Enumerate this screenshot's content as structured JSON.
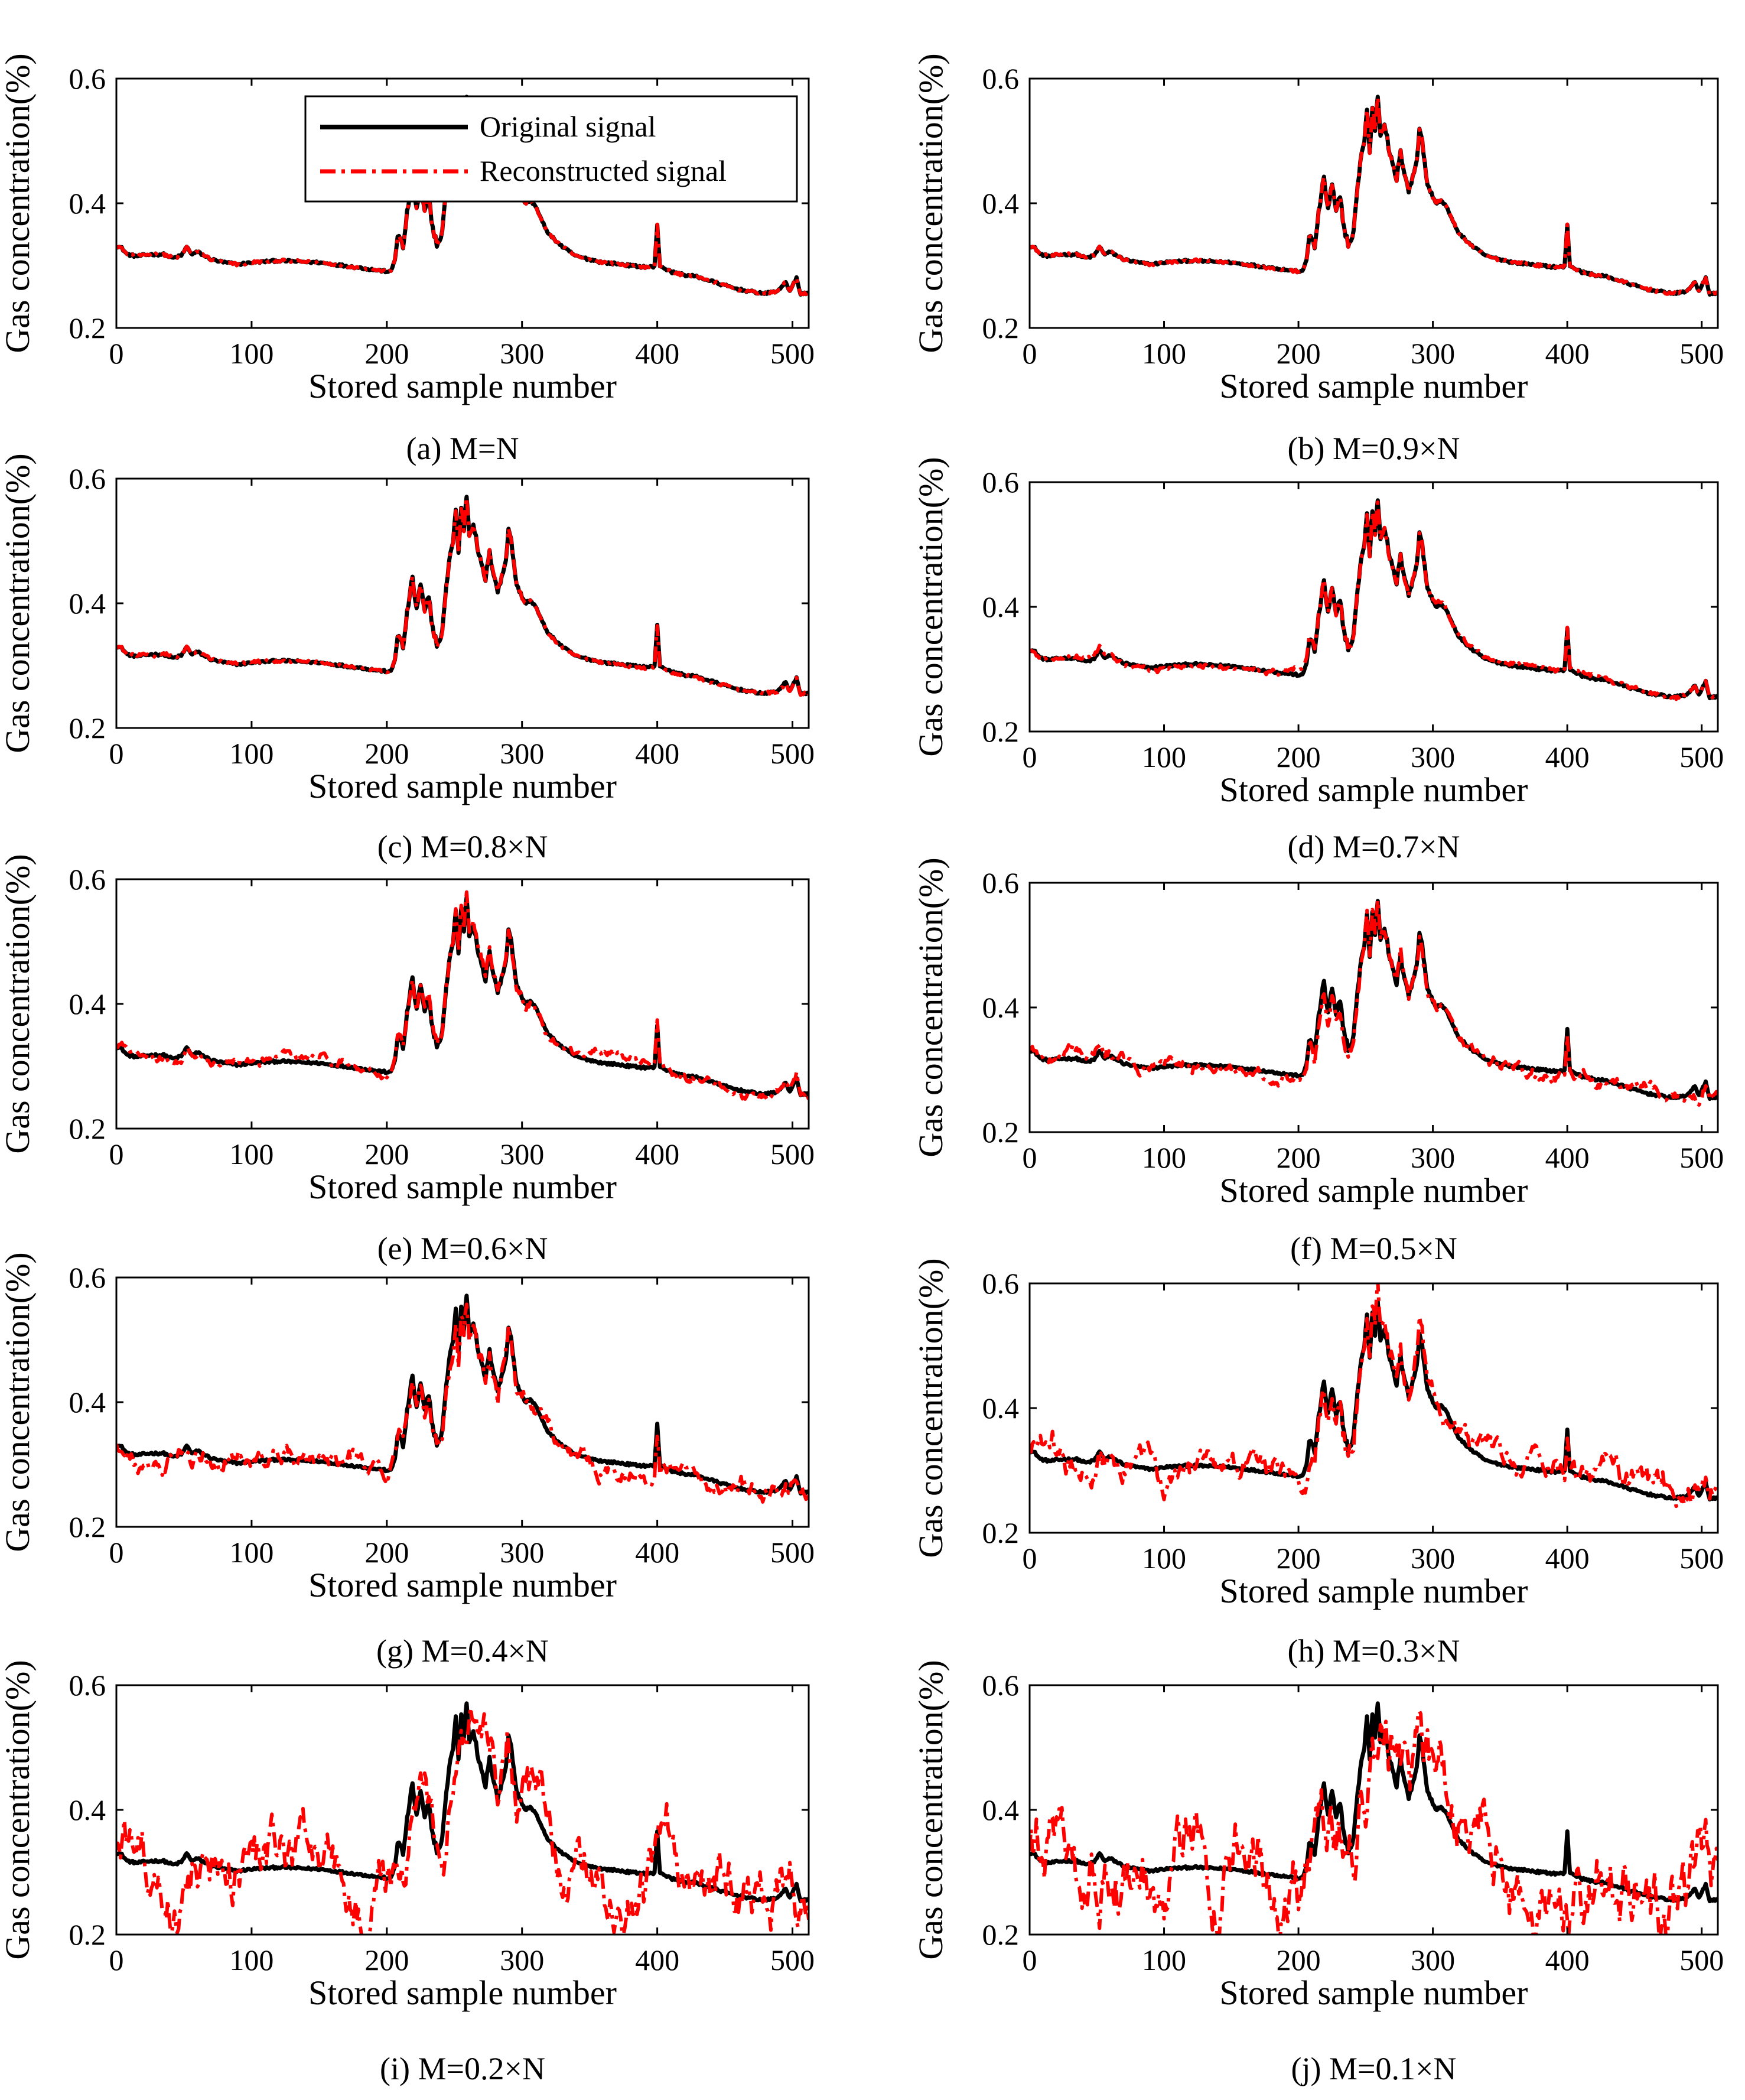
{
  "figure": {
    "legend": {
      "original": "Original signal",
      "reconstructed": "Reconstructed signal"
    },
    "colors": {
      "original": "#000000",
      "reconstructed": "#ff0000"
    }
  },
  "chart_data": [
    {
      "type": "line",
      "caption": "(a) M=N",
      "ratio": 1.0,
      "xlabel": "Stored sample number",
      "ylabel": "Gas concentration(%)",
      "xlim": [
        0,
        512
      ],
      "ylim": [
        0.2,
        0.6
      ],
      "xticks": [
        "0",
        "100",
        "200",
        "300",
        "400",
        "500"
      ],
      "yticks": [
        "0.2",
        "0.4",
        "0.6"
      ],
      "series": [
        {
          "name": "Original signal",
          "style": "solid"
        },
        {
          "name": "Reconstructed signal",
          "style": "dashdot"
        }
      ]
    },
    {
      "type": "line",
      "caption": "(b) M=0.9×N",
      "ratio": 0.9,
      "xlabel": "Stored sample number",
      "ylabel": "Gas concentration(%)",
      "xlim": [
        0,
        512
      ],
      "ylim": [
        0.2,
        0.6
      ],
      "xticks": [
        "0",
        "100",
        "200",
        "300",
        "400",
        "500"
      ],
      "yticks": [
        "0.2",
        "0.4",
        "0.6"
      ],
      "series": [
        {
          "name": "Original signal",
          "style": "solid"
        },
        {
          "name": "Reconstructed signal",
          "style": "dashdot"
        }
      ]
    },
    {
      "type": "line",
      "caption": "(c) M=0.8×N",
      "ratio": 0.8,
      "xlabel": "Stored sample number",
      "ylabel": "Gas concentration(%)",
      "xlim": [
        0,
        512
      ],
      "ylim": [
        0.2,
        0.6
      ],
      "xticks": [
        "0",
        "100",
        "200",
        "300",
        "400",
        "500"
      ],
      "yticks": [
        "0.2",
        "0.4",
        "0.6"
      ],
      "series": [
        {
          "name": "Original signal",
          "style": "solid"
        },
        {
          "name": "Reconstructed signal",
          "style": "dashdot"
        }
      ]
    },
    {
      "type": "line",
      "caption": "(d) M=0.7×N",
      "ratio": 0.7,
      "xlabel": "Stored sample number",
      "ylabel": "Gas concentration(%)",
      "xlim": [
        0,
        512
      ],
      "ylim": [
        0.2,
        0.6
      ],
      "xticks": [
        "0",
        "100",
        "200",
        "300",
        "400",
        "500"
      ],
      "yticks": [
        "0.2",
        "0.4",
        "0.6"
      ],
      "series": [
        {
          "name": "Original signal",
          "style": "solid"
        },
        {
          "name": "Reconstructed signal",
          "style": "dashdot"
        }
      ]
    },
    {
      "type": "line",
      "caption": "(e) M=0.6×N",
      "ratio": 0.6,
      "xlabel": "Stored sample number",
      "ylabel": "Gas concentration(%)",
      "xlim": [
        0,
        512
      ],
      "ylim": [
        0.2,
        0.6
      ],
      "xticks": [
        "0",
        "100",
        "200",
        "300",
        "400",
        "500"
      ],
      "yticks": [
        "0.2",
        "0.4",
        "0.6"
      ],
      "series": [
        {
          "name": "Original signal",
          "style": "solid"
        },
        {
          "name": "Reconstructed signal",
          "style": "dashdot"
        }
      ]
    },
    {
      "type": "line",
      "caption": "(f) M=0.5×N",
      "ratio": 0.5,
      "xlabel": "Stored sample number",
      "ylabel": "Gas concentration(%)",
      "xlim": [
        0,
        512
      ],
      "ylim": [
        0.2,
        0.6
      ],
      "xticks": [
        "0",
        "100",
        "200",
        "300",
        "400",
        "500"
      ],
      "yticks": [
        "0.2",
        "0.4",
        "0.6"
      ],
      "series": [
        {
          "name": "Original signal",
          "style": "solid"
        },
        {
          "name": "Reconstructed signal",
          "style": "dashdot"
        }
      ]
    },
    {
      "type": "line",
      "caption": "(g) M=0.4×N",
      "ratio": 0.4,
      "xlabel": "Stored sample number",
      "ylabel": "Gas concentration(%)",
      "xlim": [
        0,
        512
      ],
      "ylim": [
        0.2,
        0.6
      ],
      "xticks": [
        "0",
        "100",
        "200",
        "300",
        "400",
        "500"
      ],
      "yticks": [
        "0.2",
        "0.4",
        "0.6"
      ],
      "series": [
        {
          "name": "Original signal",
          "style": "solid"
        },
        {
          "name": "Reconstructed signal",
          "style": "dashdot"
        }
      ]
    },
    {
      "type": "line",
      "caption": "(h) M=0.3×N",
      "ratio": 0.3,
      "xlabel": "Stored sample number",
      "ylabel": "Gas concentration(%)",
      "xlim": [
        0,
        512
      ],
      "ylim": [
        0.2,
        0.6
      ],
      "xticks": [
        "0",
        "100",
        "200",
        "300",
        "400",
        "500"
      ],
      "yticks": [
        "0.2",
        "0.4",
        "0.6"
      ],
      "series": [
        {
          "name": "Original signal",
          "style": "solid"
        },
        {
          "name": "Reconstructed signal",
          "style": "dashdot"
        }
      ]
    },
    {
      "type": "line",
      "caption": "(i) M=0.2×N",
      "ratio": 0.2,
      "xlabel": "Stored sample number",
      "ylabel": "Gas concentration(%)",
      "xlim": [
        0,
        512
      ],
      "ylim": [
        0.2,
        0.6
      ],
      "xticks": [
        "0",
        "100",
        "200",
        "300",
        "400",
        "500"
      ],
      "yticks": [
        "0.2",
        "0.4",
        "0.6"
      ],
      "series": [
        {
          "name": "Original signal",
          "style": "solid"
        },
        {
          "name": "Reconstructed signal",
          "style": "dashdot"
        }
      ]
    },
    {
      "type": "line",
      "caption": "(j) M=0.1×N",
      "ratio": 0.1,
      "xlabel": "Stored sample number",
      "ylabel": "Gas concentration(%)",
      "xlim": [
        0,
        512
      ],
      "ylim": [
        0.2,
        0.6
      ],
      "xticks": [
        "0",
        "100",
        "200",
        "300",
        "400",
        "500"
      ],
      "yticks": [
        "0.2",
        "0.4",
        "0.6"
      ],
      "series": [
        {
          "name": "Original signal",
          "style": "solid"
        },
        {
          "name": "Reconstructed signal",
          "style": "dashdot"
        }
      ]
    }
  ],
  "signal": {
    "n_samples": 512,
    "original_keypoints": [
      [
        0,
        0.332
      ],
      [
        4,
        0.328
      ],
      [
        8,
        0.318
      ],
      [
        15,
        0.315
      ],
      [
        25,
        0.318
      ],
      [
        35,
        0.318
      ],
      [
        42,
        0.312
      ],
      [
        48,
        0.316
      ],
      [
        52,
        0.33
      ],
      [
        56,
        0.318
      ],
      [
        60,
        0.322
      ],
      [
        70,
        0.31
      ],
      [
        80,
        0.305
      ],
      [
        90,
        0.302
      ],
      [
        100,
        0.305
      ],
      [
        120,
        0.308
      ],
      [
        150,
        0.305
      ],
      [
        175,
        0.298
      ],
      [
        195,
        0.292
      ],
      [
        203,
        0.29
      ],
      [
        206,
        0.31
      ],
      [
        208,
        0.35
      ],
      [
        212,
        0.33
      ],
      [
        216,
        0.4
      ],
      [
        219,
        0.44
      ],
      [
        222,
        0.39
      ],
      [
        225,
        0.43
      ],
      [
        228,
        0.385
      ],
      [
        231,
        0.41
      ],
      [
        234,
        0.36
      ],
      [
        237,
        0.335
      ],
      [
        240,
        0.34
      ],
      [
        243,
        0.4
      ],
      [
        246,
        0.47
      ],
      [
        249,
        0.5
      ],
      [
        251,
        0.55
      ],
      [
        253,
        0.48
      ],
      [
        255,
        0.555
      ],
      [
        257,
        0.52
      ],
      [
        259,
        0.575
      ],
      [
        261,
        0.51
      ],
      [
        264,
        0.53
      ],
      [
        267,
        0.49
      ],
      [
        270,
        0.46
      ],
      [
        273,
        0.44
      ],
      [
        276,
        0.48
      ],
      [
        279,
        0.45
      ],
      [
        282,
        0.42
      ],
      [
        285,
        0.44
      ],
      [
        288,
        0.47
      ],
      [
        290,
        0.52
      ],
      [
        292,
        0.505
      ],
      [
        295,
        0.44
      ],
      [
        298,
        0.42
      ],
      [
        302,
        0.4
      ],
      [
        306,
        0.405
      ],
      [
        310,
        0.395
      ],
      [
        315,
        0.37
      ],
      [
        320,
        0.35
      ],
      [
        330,
        0.33
      ],
      [
        340,
        0.315
      ],
      [
        350,
        0.31
      ],
      [
        360,
        0.305
      ],
      [
        370,
        0.303
      ],
      [
        380,
        0.3
      ],
      [
        390,
        0.298
      ],
      [
        398,
        0.298
      ],
      [
        400,
        0.365
      ],
      [
        402,
        0.3
      ],
      [
        410,
        0.29
      ],
      [
        420,
        0.285
      ],
      [
        430,
        0.282
      ],
      [
        440,
        0.275
      ],
      [
        450,
        0.268
      ],
      [
        460,
        0.262
      ],
      [
        470,
        0.258
      ],
      [
        480,
        0.255
      ],
      [
        490,
        0.26
      ],
      [
        495,
        0.275
      ],
      [
        498,
        0.258
      ],
      [
        503,
        0.28
      ],
      [
        506,
        0.255
      ],
      [
        512,
        0.255
      ]
    ],
    "peak_values": {
      "peak_sample": 259,
      "peak_value": 0.575,
      "spike_sample": 400,
      "spike_value": 0.365
    }
  }
}
